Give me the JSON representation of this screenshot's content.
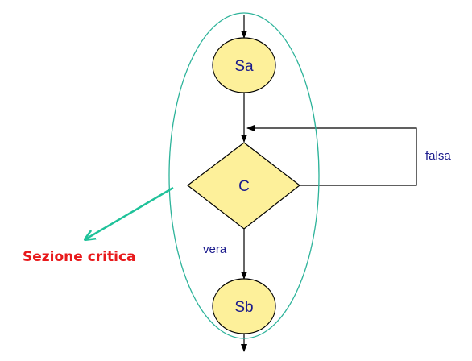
{
  "nodes": {
    "start": {
      "label": "Sa"
    },
    "condition": {
      "label": "C"
    },
    "end": {
      "label": "Sb"
    }
  },
  "edges": {
    "true_label": "vera",
    "false_label": "falsa"
  },
  "annotation": {
    "label": "Sezione critica"
  },
  "colors": {
    "node_fill": "#fdf09a",
    "node_stroke": "#000000",
    "text": "#1a1a8c",
    "region_outline": "#2db39a",
    "annotation_arrow": "#1fc29a",
    "annotation_text": "#e8191b"
  }
}
